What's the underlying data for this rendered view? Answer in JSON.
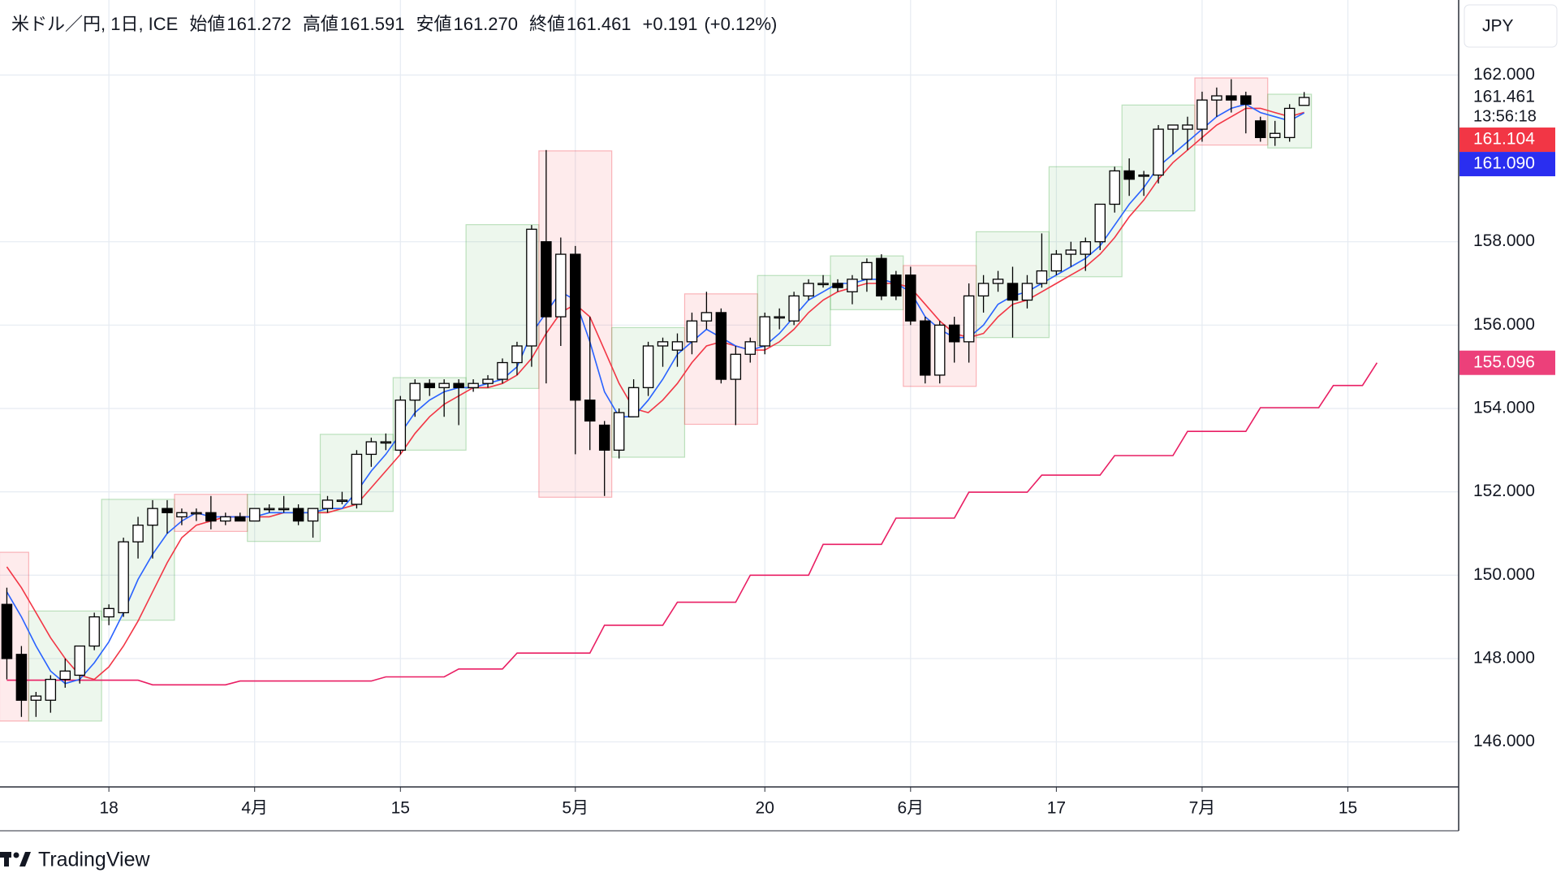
{
  "chart_data": {
    "type": "candlestick",
    "header": {
      "symbol": "米ドル／円, 1日, ICE",
      "fields": [
        {
          "label": "始値",
          "value": "161.272"
        },
        {
          "label": "高値",
          "value": "161.591"
        },
        {
          "label": "安値",
          "value": "161.270"
        },
        {
          "label": "終値",
          "value": "161.461"
        }
      ],
      "change": "+0.191",
      "change_pct": "(+0.12%)"
    },
    "currency": "JPY",
    "xlim": [
      -0.47,
      99.6
    ],
    "xticks": [
      {
        "value": 7,
        "label": "18"
      },
      {
        "value": 17,
        "label": "4月"
      },
      {
        "value": 27,
        "label": "15"
      },
      {
        "value": 39,
        "label": "5月"
      },
      {
        "value": 52,
        "label": "20"
      },
      {
        "value": 62,
        "label": "6月"
      },
      {
        "value": 72,
        "label": "17"
      },
      {
        "value": 82,
        "label": "7月"
      },
      {
        "value": 92,
        "label": "15"
      }
    ],
    "ylim": [
      144.92,
      163.8
    ],
    "yticks": [
      {
        "value": 146,
        "label": "146.000"
      },
      {
        "value": 148,
        "label": "148.000"
      },
      {
        "value": 150,
        "label": "150.000"
      },
      {
        "value": 152,
        "label": "152.000"
      },
      {
        "value": 154,
        "label": "154.000"
      },
      {
        "value": 156,
        "label": "156.000"
      },
      {
        "value": 158,
        "label": "158.000"
      },
      {
        "value": 162,
        "label": "162.000"
      }
    ],
    "grid": true,
    "up_color": "#ffffff",
    "down_color": "#000000",
    "wick_color": "#000000",
    "open": [
      149.3,
      148.1,
      147.0,
      147.0,
      147.5,
      147.6,
      148.3,
      149.0,
      149.1,
      150.8,
      151.2,
      151.6,
      151.4,
      151.5,
      151.5,
      151.3,
      151.4,
      151.3,
      151.6,
      151.6,
      151.6,
      151.3,
      151.6,
      151.8,
      151.7,
      152.9,
      153.2,
      153.0,
      154.2,
      154.6,
      154.5,
      154.6,
      154.5,
      154.6,
      154.7,
      155.1,
      155.5,
      158.0,
      156.2,
      157.7,
      154.2,
      153.6,
      153.0,
      153.8,
      154.5,
      155.5,
      155.4,
      155.6,
      156.1,
      156.3,
      154.7,
      155.3,
      155.5,
      156.2,
      156.1,
      156.7,
      157.0,
      157.0,
      156.8,
      157.1,
      157.6,
      157.2,
      157.2,
      156.1,
      154.8,
      156.0,
      155.6,
      156.7,
      157.0,
      157.0,
      156.6,
      157.0,
      157.3,
      157.7,
      157.7,
      158.0,
      158.9,
      159.7,
      159.6,
      159.6,
      160.7,
      160.7,
      160.7,
      161.4,
      161.5,
      161.5,
      160.9,
      160.5,
      160.5,
      161.272
    ],
    "high": [
      149.7,
      148.3,
      147.2,
      147.6,
      148.0,
      148.3,
      149.1,
      149.3,
      150.9,
      151.4,
      151.8,
      151.8,
      151.6,
      151.6,
      151.9,
      151.5,
      151.5,
      151.6,
      151.7,
      151.9,
      151.7,
      151.6,
      151.9,
      152.0,
      153.0,
      153.3,
      153.4,
      154.3,
      154.7,
      154.7,
      154.7,
      154.7,
      154.7,
      154.8,
      155.2,
      155.6,
      158.4,
      160.2,
      158.1,
      157.9,
      156.2,
      153.7,
      154.0,
      154.7,
      155.6,
      155.7,
      155.8,
      156.3,
      156.8,
      156.4,
      155.5,
      155.7,
      156.3,
      156.4,
      156.8,
      157.1,
      157.2,
      157.1,
      157.2,
      157.6,
      157.7,
      157.3,
      157.4,
      156.2,
      156.1,
      156.2,
      157.0,
      157.2,
      157.3,
      157.4,
      157.2,
      158.2,
      157.8,
      158.0,
      158.1,
      158.9,
      159.8,
      160.0,
      159.7,
      160.8,
      160.8,
      161.0,
      161.6,
      161.7,
      161.9,
      161.6,
      161.0,
      160.9,
      161.3,
      161.591
    ],
    "low": [
      147.5,
      146.6,
      146.6,
      146.7,
      147.3,
      147.4,
      148.2,
      148.8,
      149.0,
      150.4,
      150.4,
      151.0,
      151.2,
      151.3,
      151.1,
      151.2,
      151.3,
      151.3,
      151.5,
      151.5,
      151.2,
      150.9,
      151.5,
      151.7,
      151.6,
      152.6,
      153.0,
      152.9,
      153.8,
      154.3,
      153.8,
      153.6,
      154.4,
      154.5,
      154.6,
      154.8,
      155.0,
      154.6,
      155.5,
      152.9,
      153.0,
      151.9,
      152.8,
      153.8,
      154.3,
      155.0,
      155.0,
      155.3,
      155.9,
      154.6,
      153.6,
      155.1,
      155.3,
      155.9,
      156.0,
      156.6,
      156.9,
      156.8,
      156.5,
      156.8,
      156.6,
      156.6,
      156.0,
      154.6,
      154.6,
      155.1,
      155.1,
      156.3,
      156.8,
      155.7,
      156.4,
      156.9,
      157.2,
      157.4,
      157.3,
      157.8,
      158.7,
      159.1,
      159.1,
      159.4,
      160.1,
      160.2,
      160.4,
      161.0,
      161.1,
      160.6,
      160.4,
      160.3,
      160.4,
      161.27
    ],
    "close": [
      148.0,
      147.0,
      147.1,
      147.5,
      147.7,
      148.3,
      149.0,
      149.2,
      150.8,
      151.2,
      151.6,
      151.5,
      151.5,
      151.5,
      151.3,
      151.4,
      151.3,
      151.6,
      151.6,
      151.6,
      151.3,
      151.6,
      151.8,
      151.8,
      152.9,
      153.2,
      153.2,
      154.2,
      154.6,
      154.5,
      154.6,
      154.5,
      154.6,
      154.7,
      155.1,
      155.5,
      158.3,
      156.2,
      157.7,
      154.2,
      153.7,
      153.0,
      153.9,
      154.5,
      155.5,
      155.6,
      155.6,
      156.1,
      156.3,
      154.7,
      155.3,
      155.6,
      156.2,
      156.2,
      156.7,
      157.0,
      157.0,
      156.9,
      157.1,
      157.5,
      156.7,
      156.7,
      156.1,
      154.8,
      156.0,
      155.6,
      156.7,
      157.0,
      157.1,
      156.6,
      157.0,
      157.3,
      157.7,
      157.8,
      158.0,
      158.9,
      159.7,
      159.5,
      159.6,
      160.7,
      160.8,
      160.8,
      161.4,
      161.5,
      161.4,
      161.3,
      160.5,
      160.6,
      161.2,
      161.461
    ],
    "series": [
      {
        "color": "#2962ff",
        "values": [
          149.6,
          149.0,
          148.3,
          147.7,
          147.4,
          147.5,
          147.9,
          148.4,
          149.1,
          149.9,
          150.5,
          151.0,
          151.3,
          151.5,
          151.4,
          151.4,
          151.4,
          151.4,
          151.5,
          151.5,
          151.5,
          151.5,
          151.6,
          151.6,
          152.0,
          152.5,
          152.9,
          153.4,
          153.9,
          154.2,
          154.4,
          154.5,
          154.5,
          154.6,
          154.7,
          155.0,
          155.8,
          156.3,
          156.8,
          156.6,
          155.6,
          154.4,
          153.8,
          153.8,
          154.2,
          154.7,
          155.3,
          155.6,
          155.9,
          155.7,
          155.5,
          155.4,
          155.5,
          155.8,
          156.2,
          156.6,
          156.8,
          157.0,
          157.0,
          157.1,
          157.1,
          157.0,
          156.8,
          156.2,
          155.9,
          155.7,
          155.7,
          156.0,
          156.5,
          156.7,
          156.8,
          157.0,
          157.2,
          157.4,
          157.6,
          157.9,
          158.4,
          158.9,
          159.3,
          159.8,
          160.1,
          160.4,
          160.7,
          161.0,
          161.2,
          161.3,
          161.1,
          161.0,
          160.9,
          161.09
        ]
      },
      {
        "color": "#f23645",
        "values": [
          150.2,
          149.7,
          149.1,
          148.5,
          148.0,
          147.6,
          147.5,
          147.8,
          148.3,
          148.9,
          149.6,
          150.3,
          150.9,
          151.2,
          151.3,
          151.4,
          151.4,
          151.4,
          151.4,
          151.5,
          151.5,
          151.5,
          151.5,
          151.6,
          151.7,
          152.1,
          152.5,
          152.9,
          153.4,
          153.8,
          154.1,
          154.3,
          154.5,
          154.5,
          154.6,
          154.8,
          155.2,
          155.8,
          156.3,
          156.5,
          156.2,
          155.4,
          154.6,
          154.0,
          153.9,
          154.2,
          154.6,
          155.1,
          155.5,
          155.6,
          155.5,
          155.4,
          155.4,
          155.6,
          155.9,
          156.3,
          156.6,
          156.8,
          156.9,
          157.0,
          157.0,
          157.0,
          156.9,
          156.5,
          156.1,
          155.8,
          155.7,
          155.8,
          156.2,
          156.5,
          156.6,
          156.8,
          157.0,
          157.2,
          157.4,
          157.7,
          158.1,
          158.6,
          159.0,
          159.5,
          159.9,
          160.2,
          160.5,
          160.8,
          161.0,
          161.2,
          161.2,
          161.1,
          161.0,
          161.104
        ]
      },
      {
        "color": "#e91e63",
        "values": [
          147.48,
          147.48,
          147.48,
          147.48,
          147.48,
          147.48,
          147.48,
          147.48,
          147.48,
          147.48,
          147.37,
          147.37,
          147.37,
          147.37,
          147.37,
          147.37,
          147.46,
          147.46,
          147.46,
          147.46,
          147.46,
          147.46,
          147.46,
          147.46,
          147.46,
          147.46,
          147.56,
          147.56,
          147.56,
          147.56,
          147.56,
          147.75,
          147.75,
          147.75,
          147.75,
          148.13,
          148.13,
          148.13,
          148.13,
          148.13,
          148.13,
          148.8,
          148.8,
          148.8,
          148.8,
          148.8,
          149.35,
          149.35,
          149.35,
          149.35,
          149.35,
          150.0,
          150.0,
          150.0,
          150.0,
          150.0,
          150.74,
          150.74,
          150.74,
          150.74,
          150.74,
          151.37,
          151.37,
          151.37,
          151.37,
          151.37,
          151.99,
          151.99,
          151.99,
          151.99,
          151.99,
          152.4,
          152.4,
          152.4,
          152.4,
          152.4,
          152.87,
          152.87,
          152.87,
          152.87,
          152.87,
          153.45,
          153.45,
          153.45,
          153.45,
          153.45,
          154.02,
          154.02,
          154.02,
          154.02,
          154.02,
          154.55,
          154.55,
          154.55,
          155.096
        ]
      }
    ],
    "range_colors": {
      "up": "#4caf50",
      "down": "#f23645"
    },
    "ranges": [
      {
        "from": 0,
        "to": 1,
        "low": 146.5,
        "high": 150.55,
        "dir": "down"
      },
      {
        "from": 2,
        "to": 6,
        "low": 146.5,
        "high": 149.14,
        "dir": "up"
      },
      {
        "from": 7,
        "to": 11,
        "low": 148.92,
        "high": 151.82,
        "dir": "up"
      },
      {
        "from": 12,
        "to": 16,
        "low": 151.05,
        "high": 151.94,
        "dir": "down"
      },
      {
        "from": 17,
        "to": 21,
        "low": 150.81,
        "high": 151.94,
        "dir": "up"
      },
      {
        "from": 22,
        "to": 26,
        "low": 151.53,
        "high": 153.38,
        "dir": "up"
      },
      {
        "from": 27,
        "to": 31,
        "low": 153.0,
        "high": 154.74,
        "dir": "up"
      },
      {
        "from": 32,
        "to": 36,
        "low": 154.48,
        "high": 158.41,
        "dir": "up"
      },
      {
        "from": 37,
        "to": 41,
        "low": 151.87,
        "high": 160.18,
        "dir": "down"
      },
      {
        "from": 42,
        "to": 46,
        "low": 152.83,
        "high": 155.94,
        "dir": "up"
      },
      {
        "from": 47,
        "to": 51,
        "low": 153.62,
        "high": 156.75,
        "dir": "down"
      },
      {
        "from": 52,
        "to": 56,
        "low": 155.51,
        "high": 157.19,
        "dir": "up"
      },
      {
        "from": 57,
        "to": 61,
        "low": 156.37,
        "high": 157.66,
        "dir": "up"
      },
      {
        "from": 62,
        "to": 66,
        "low": 154.53,
        "high": 157.43,
        "dir": "down"
      },
      {
        "from": 67,
        "to": 71,
        "low": 155.7,
        "high": 158.24,
        "dir": "up"
      },
      {
        "from": 72,
        "to": 76,
        "low": 157.16,
        "high": 159.8,
        "dir": "up"
      },
      {
        "from": 77,
        "to": 81,
        "low": 158.74,
        "high": 161.28,
        "dir": "up"
      },
      {
        "from": 82,
        "to": 86,
        "low": 160.32,
        "high": 161.93,
        "dir": "down"
      },
      {
        "from": 87,
        "to": 89,
        "low": 160.25,
        "high": 161.54,
        "dir": "up"
      }
    ],
    "price_labels": [
      {
        "value": 161.461,
        "label": "161.461",
        "sub": "13:56:18",
        "bg": "#ffffff",
        "fg": "#131722"
      },
      {
        "value": 161.104,
        "label": "161.104",
        "bg": "#f23645",
        "fg": "#ffffff"
      },
      {
        "value": 161.09,
        "label": "161.090",
        "bg": "#2a2ef0",
        "fg": "#ffffff"
      },
      {
        "value": 155.096,
        "label": "155.096",
        "bg": "#ec407a",
        "fg": "#ffffff"
      }
    ]
  },
  "brand": "TradingView"
}
